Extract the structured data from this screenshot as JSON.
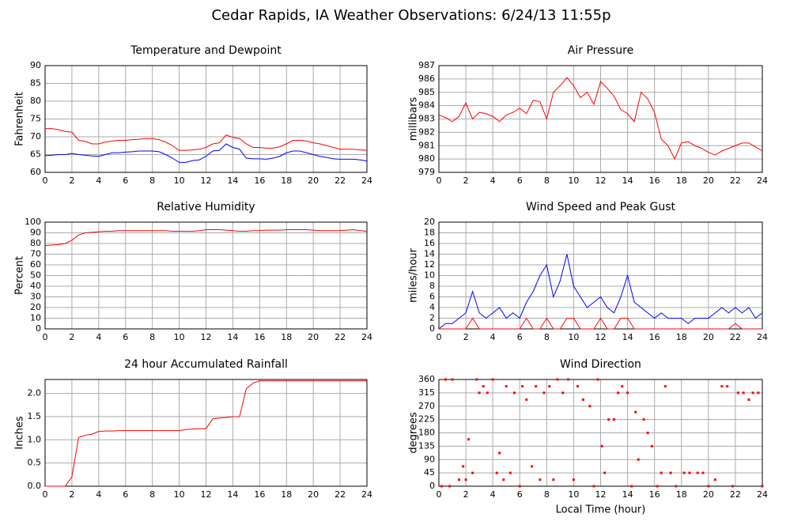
{
  "title": "Cedar Rapids, IA Weather Observations: 6/24/13 11:55p",
  "chart_data": [
    {
      "type": "line",
      "title": "Temperature and Dewpoint",
      "ylabel": "Fahrenheit",
      "x": [
        0,
        0.5,
        1,
        1.5,
        2,
        2.5,
        3,
        3.5,
        4,
        4.5,
        5,
        5.5,
        6,
        6.5,
        7,
        7.5,
        8,
        8.5,
        9,
        9.5,
        10,
        10.5,
        11,
        11.5,
        12,
        12.5,
        13,
        13.5,
        14,
        14.5,
        15,
        15.5,
        16,
        16.5,
        17,
        17.5,
        18,
        18.5,
        19,
        19.5,
        20,
        20.5,
        21,
        21.5,
        22,
        22.5,
        23,
        23.5,
        24
      ],
      "series": [
        {
          "color": "#ff0000",
          "values": [
            72.3,
            72.3,
            72,
            71.5,
            71.3,
            69,
            68.7,
            68,
            68,
            68.5,
            68.8,
            69,
            69,
            69.2,
            69.3,
            69.5,
            69.5,
            69.2,
            68.5,
            67.5,
            66.2,
            66.2,
            66.3,
            66.5,
            67,
            68,
            68.3,
            70.5,
            69.8,
            69.5,
            68,
            67,
            67,
            66.8,
            66.8,
            67.2,
            68,
            69,
            69,
            68.8,
            68.3,
            68,
            67.5,
            67,
            66.5,
            66.5,
            66.5,
            66.3,
            66.2
          ]
        },
        {
          "color": "#0000ff",
          "values": [
            64.7,
            64.8,
            65,
            65,
            65.3,
            65,
            64.8,
            64.6,
            64.5,
            65,
            65.5,
            65.5,
            65.7,
            65.8,
            66,
            66,
            66,
            65.8,
            65,
            64,
            62.8,
            62.8,
            63.3,
            63.5,
            64.5,
            66,
            66.2,
            68,
            67,
            66.5,
            64,
            63.8,
            63.8,
            63.7,
            64,
            64.5,
            65.5,
            66,
            66,
            65.5,
            65,
            64.5,
            64.2,
            63.8,
            63.7,
            63.7,
            63.7,
            63.5,
            63.2
          ]
        }
      ],
      "xlim": [
        0,
        24
      ],
      "xticks": [
        0,
        2,
        4,
        6,
        8,
        10,
        12,
        14,
        16,
        18,
        20,
        22,
        24
      ],
      "ylim": [
        60,
        90
      ],
      "yticks": [
        60,
        65,
        70,
        75,
        80,
        85,
        90
      ],
      "grid": true
    },
    {
      "type": "line",
      "title": "Air Pressure",
      "ylabel": "millibars",
      "x": [
        0,
        0.5,
        1,
        1.5,
        2,
        2.5,
        3,
        3.5,
        4,
        4.5,
        5,
        5.5,
        6,
        6.5,
        7,
        7.5,
        8,
        8.5,
        9,
        9.5,
        10,
        10.5,
        11,
        11.5,
        12,
        12.5,
        13,
        13.5,
        14,
        14.5,
        15,
        15.5,
        16,
        16.5,
        17,
        17.5,
        18,
        18.5,
        19,
        19.5,
        20,
        20.5,
        21,
        21.5,
        22,
        22.5,
        23,
        23.5,
        24
      ],
      "series": [
        {
          "color": "#ff0000",
          "values": [
            983.3,
            983.1,
            982.8,
            983.2,
            984.2,
            983,
            983.5,
            983.4,
            983.2,
            982.8,
            983.3,
            983.5,
            983.8,
            983.4,
            984.4,
            984.3,
            983,
            985,
            985.5,
            986.1,
            985.5,
            984.6,
            985,
            984.1,
            985.8,
            985.3,
            984.7,
            983.7,
            983.4,
            982.8,
            985,
            984.5,
            983.5,
            981.5,
            981,
            980,
            981.2,
            981.3,
            981,
            980.8,
            980.5,
            980.3,
            980.6,
            980.8,
            981,
            981.2,
            981.2,
            980.9,
            980.6
          ]
        }
      ],
      "xlim": [
        0,
        24
      ],
      "xticks": [
        0,
        2,
        4,
        6,
        8,
        10,
        12,
        14,
        16,
        18,
        20,
        22,
        24
      ],
      "ylim": [
        979,
        987
      ],
      "yticks": [
        979,
        980,
        981,
        982,
        983,
        984,
        985,
        986,
        987
      ],
      "grid": true
    },
    {
      "type": "line",
      "title": "Relative Humidity",
      "ylabel": "Percent",
      "x": [
        0,
        0.5,
        1,
        1.5,
        2,
        2.5,
        3,
        3.5,
        4,
        4.5,
        5,
        5.5,
        6,
        6.5,
        7,
        7.5,
        8,
        8.5,
        9,
        9.5,
        10,
        10.5,
        11,
        11.5,
        12,
        12.5,
        13,
        13.5,
        14,
        14.5,
        15,
        15.5,
        16,
        16.5,
        17,
        17.5,
        18,
        18.5,
        19,
        19.5,
        20,
        20.5,
        21,
        21.5,
        22,
        22.5,
        23,
        23.5,
        24
      ],
      "series": [
        {
          "color": "#ff0000",
          "values": [
            78,
            78.5,
            79,
            80,
            83,
            88,
            90,
            90.5,
            91,
            91.5,
            91.5,
            92,
            92,
            92,
            92,
            92,
            92,
            92,
            92,
            91.5,
            91.5,
            91.5,
            91.5,
            92,
            93,
            93,
            93,
            92.5,
            92,
            91.5,
            91.5,
            92,
            92,
            92.5,
            92.5,
            92.5,
            93,
            93,
            93,
            93,
            92.5,
            92,
            92,
            92,
            92,
            92.5,
            93,
            92,
            91.5
          ]
        }
      ],
      "xlim": [
        0,
        24
      ],
      "xticks": [
        0,
        2,
        4,
        6,
        8,
        10,
        12,
        14,
        16,
        18,
        20,
        22,
        24
      ],
      "ylim": [
        0,
        100
      ],
      "yticks": [
        0,
        10,
        20,
        30,
        40,
        50,
        60,
        70,
        80,
        90,
        100
      ],
      "grid": true
    },
    {
      "type": "line",
      "title": "Wind Speed and Peak Gust",
      "ylabel": "miles/hour",
      "x": [
        0,
        0.5,
        1,
        1.5,
        2,
        2.5,
        3,
        3.5,
        4,
        4.5,
        5,
        5.5,
        6,
        6.5,
        7,
        7.5,
        8,
        8.5,
        9,
        9.5,
        10,
        10.5,
        11,
        11.5,
        12,
        12.5,
        13,
        13.5,
        14,
        14.5,
        15,
        15.5,
        16,
        16.5,
        17,
        17.5,
        18,
        18.5,
        19,
        19.5,
        20,
        20.5,
        21,
        21.5,
        22,
        22.5,
        23,
        23.5,
        24
      ],
      "series": [
        {
          "color": "#0000ff",
          "values": [
            0,
            1,
            1,
            2,
            3,
            7,
            3,
            2,
            3,
            4,
            2,
            3,
            2,
            5,
            7,
            10,
            12,
            6,
            9,
            14,
            8,
            6,
            4,
            5,
            6,
            4,
            3,
            6,
            10,
            5,
            4,
            3,
            2,
            3,
            2,
            2,
            2,
            1,
            2,
            2,
            2,
            3,
            4,
            3,
            4,
            3,
            4,
            2,
            3
          ]
        },
        {
          "color": "#ff0000",
          "values": [
            0,
            0,
            0,
            0,
            0,
            2,
            0,
            0,
            0,
            0,
            0,
            0,
            0,
            2,
            0,
            0,
            2,
            0,
            0,
            2,
            2,
            0,
            0,
            0,
            2,
            0,
            0,
            2,
            2,
            0,
            0,
            0,
            0,
            0,
            0,
            0,
            0,
            0,
            0,
            0,
            0,
            0,
            0,
            0,
            1,
            0,
            0,
            0,
            0
          ]
        }
      ],
      "xlim": [
        0,
        24
      ],
      "xticks": [
        0,
        2,
        4,
        6,
        8,
        10,
        12,
        14,
        16,
        18,
        20,
        22,
        24
      ],
      "ylim": [
        0,
        20
      ],
      "yticks": [
        0,
        2,
        4,
        6,
        8,
        10,
        12,
        14,
        16,
        18,
        20
      ],
      "grid": true
    },
    {
      "type": "line",
      "title": "24 hour Accumulated Rainfall",
      "ylabel": "Inches",
      "x": [
        0,
        0.5,
        1,
        1.5,
        2,
        2.5,
        3,
        3.5,
        4,
        4.5,
        5,
        5.5,
        6,
        6.5,
        7,
        7.5,
        8,
        8.5,
        9,
        9.5,
        10,
        10.5,
        11,
        11.5,
        12,
        12.5,
        13,
        13.5,
        14,
        14.5,
        15,
        15.5,
        16,
        16.5,
        17,
        17.5,
        18,
        18.5,
        19,
        19.5,
        20,
        20.5,
        21,
        21.5,
        22,
        22.5,
        23,
        23.5,
        24
      ],
      "series": [
        {
          "color": "#ff0000",
          "values": [
            0,
            0,
            0,
            0,
            0.2,
            1.05,
            1.1,
            1.12,
            1.18,
            1.19,
            1.19,
            1.2,
            1.2,
            1.2,
            1.2,
            1.2,
            1.2,
            1.2,
            1.2,
            1.2,
            1.2,
            1.22,
            1.23,
            1.24,
            1.24,
            1.45,
            1.47,
            1.48,
            1.5,
            1.5,
            2.1,
            2.22,
            2.27,
            2.27,
            2.27,
            2.27,
            2.27,
            2.27,
            2.27,
            2.27,
            2.27,
            2.27,
            2.27,
            2.27,
            2.27,
            2.27,
            2.27,
            2.27,
            2.27
          ]
        }
      ],
      "xlim": [
        0,
        24
      ],
      "xticks": [
        0,
        2,
        4,
        6,
        8,
        10,
        12,
        14,
        16,
        18,
        20,
        22,
        24
      ],
      "ylim": [
        0,
        2.3
      ],
      "yticks": [
        {
          "value": 0,
          "label": "0.0"
        },
        0.5,
        {
          "value": 1,
          "label": "1.0"
        },
        1.5,
        {
          "value": 2,
          "label": "2.0"
        }
      ],
      "grid": true
    },
    {
      "type": "scatter",
      "title": "Wind Direction",
      "ylabel": "degrees",
      "xlabel": "Local Time (hour)",
      "color": "#ff0000",
      "x": [
        0.2,
        0.5,
        0.8,
        1.0,
        1.5,
        1.8,
        2.0,
        2.2,
        2.5,
        2.8,
        3.0,
        3.3,
        3.6,
        4.0,
        4.3,
        4.5,
        4.8,
        5.0,
        5.3,
        5.6,
        6.0,
        6.2,
        6.5,
        6.9,
        7.2,
        7.5,
        7.8,
        8.2,
        8.5,
        8.8,
        9.2,
        9.6,
        10.0,
        10.3,
        10.7,
        11.2,
        11.5,
        11.8,
        12.1,
        12.3,
        12.6,
        13.0,
        13.3,
        13.6,
        14.0,
        14.3,
        14.6,
        14.8,
        15.2,
        15.5,
        15.8,
        16.2,
        16.5,
        16.8,
        17.2,
        17.6,
        18.2,
        18.6,
        19.2,
        19.6,
        20.0,
        20.5,
        21.0,
        21.4,
        21.8,
        22.2,
        22.6,
        23.0,
        23.3,
        23.7,
        24.0
      ],
      "values": [
        0,
        360,
        0,
        360,
        22,
        67,
        22,
        158,
        45,
        360,
        315,
        337,
        315,
        360,
        45,
        112,
        22,
        337,
        45,
        315,
        0,
        337,
        292,
        67,
        337,
        22,
        315,
        337,
        22,
        360,
        315,
        360,
        22,
        337,
        292,
        270,
        0,
        360,
        135,
        45,
        225,
        225,
        315,
        337,
        315,
        0,
        250,
        90,
        225,
        180,
        135,
        0,
        45,
        337,
        45,
        0,
        45,
        45,
        45,
        45,
        0,
        22,
        337,
        337,
        0,
        315,
        315,
        292,
        315,
        315,
        0
      ],
      "xlim": [
        0,
        24
      ],
      "xticks": [
        0,
        2,
        4,
        6,
        8,
        10,
        12,
        14,
        16,
        18,
        20,
        22,
        24
      ],
      "ylim": [
        0,
        360
      ],
      "yticks": [
        0,
        45,
        90,
        135,
        180,
        225,
        270,
        315,
        360
      ],
      "grid": true
    }
  ]
}
